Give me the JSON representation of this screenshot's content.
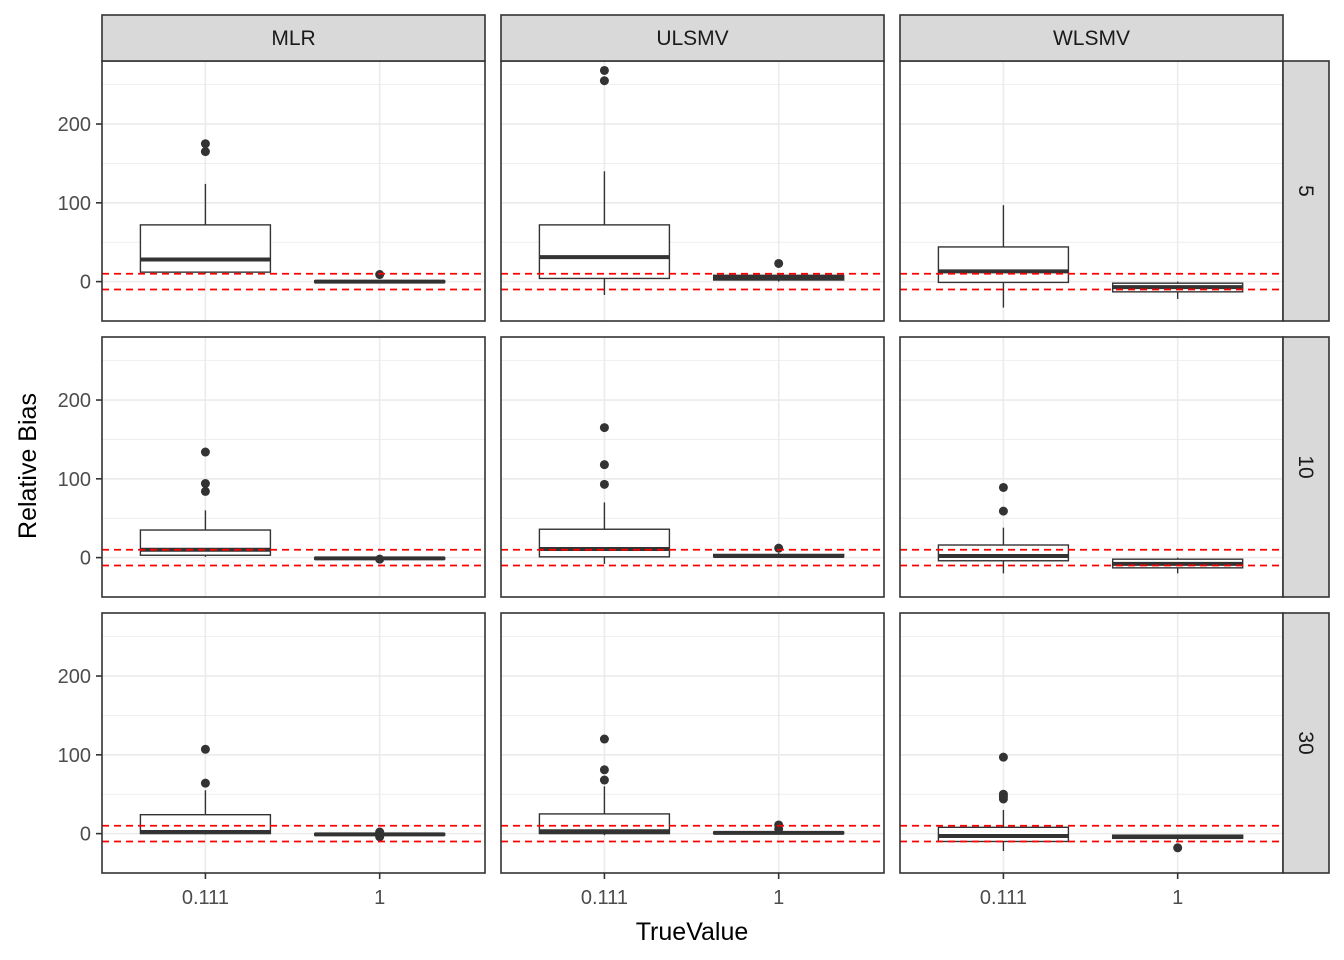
{
  "chart_data": {
    "type": "boxplot",
    "title": "",
    "xlabel": "TrueValue",
    "ylabel": "Relative Bias",
    "x_categories": [
      "0.111",
      "1"
    ],
    "y_ticks": [
      0,
      100,
      200
    ],
    "ylim": [
      -50,
      280
    ],
    "grid": true,
    "facet_cols": [
      "MLR",
      "ULSMV",
      "WLSMV"
    ],
    "facet_rows": [
      "5",
      "10",
      "30"
    ],
    "reference_lines": {
      "values": [
        -10,
        10
      ],
      "color": "#ff0000",
      "style": "dashed"
    },
    "colors": {
      "box_line": "#333333",
      "outlier": "#333333",
      "strip_fill": "#d9d9d9",
      "grid": "#ebebeb",
      "ref_line": "#ff0000"
    },
    "panels": [
      {
        "row": "5",
        "col": "MLR",
        "boxes": [
          {
            "x": "0.111",
            "min": 10,
            "q1": 12,
            "median": 28,
            "q3": 72,
            "max": 124,
            "outliers": [
              165,
              175
            ]
          },
          {
            "x": "1",
            "min": -2,
            "q1": -1,
            "median": 0,
            "q3": 1,
            "max": 2,
            "outliers": [
              9
            ]
          }
        ]
      },
      {
        "row": "5",
        "col": "ULSMV",
        "boxes": [
          {
            "x": "0.111",
            "min": -17,
            "q1": 4,
            "median": 31,
            "q3": 72,
            "max": 140,
            "outliers": [
              255,
              268
            ]
          },
          {
            "x": "1",
            "min": 0,
            "q1": 2,
            "median": 5,
            "q3": 8,
            "max": 11,
            "outliers": [
              23
            ]
          }
        ]
      },
      {
        "row": "5",
        "col": "WLSMV",
        "boxes": [
          {
            "x": "0.111",
            "min": -33,
            "q1": -1,
            "median": 13,
            "q3": 44,
            "max": 97,
            "outliers": []
          },
          {
            "x": "1",
            "min": -22,
            "q1": -13,
            "median": -7,
            "q3": -2,
            "max": 0,
            "outliers": []
          }
        ]
      },
      {
        "row": "10",
        "col": "MLR",
        "boxes": [
          {
            "x": "0.111",
            "min": 1,
            "q1": 3,
            "median": 10,
            "q3": 35,
            "max": 60,
            "outliers": [
              84,
              94,
              134
            ]
          },
          {
            "x": "1",
            "min": -3,
            "q1": -2,
            "median": -1,
            "q3": 0,
            "max": 1,
            "outliers": [
              -2
            ]
          }
        ]
      },
      {
        "row": "10",
        "col": "ULSMV",
        "boxes": [
          {
            "x": "0.111",
            "min": -8,
            "q1": 1,
            "median": 11,
            "q3": 36,
            "max": 70,
            "outliers": [
              93,
              118,
              165
            ]
          },
          {
            "x": "1",
            "min": 0,
            "q1": 1,
            "median": 2,
            "q3": 4,
            "max": 6,
            "outliers": [
              12
            ]
          }
        ]
      },
      {
        "row": "10",
        "col": "WLSMV",
        "boxes": [
          {
            "x": "0.111",
            "min": -20,
            "q1": -4,
            "median": 2,
            "q3": 16,
            "max": 38,
            "outliers": [
              59,
              89
            ]
          },
          {
            "x": "1",
            "min": -20,
            "q1": -13,
            "median": -8,
            "q3": -2,
            "max": 0,
            "outliers": []
          }
        ]
      },
      {
        "row": "30",
        "col": "MLR",
        "boxes": [
          {
            "x": "0.111",
            "min": -1,
            "q1": 0,
            "median": 2,
            "q3": 24,
            "max": 55,
            "outliers": [
              64,
              107
            ]
          },
          {
            "x": "1",
            "min": -4,
            "q1": -2,
            "median": -1,
            "q3": 0,
            "max": 1,
            "outliers": [
              -4,
              0,
              2
            ]
          }
        ]
      },
      {
        "row": "30",
        "col": "ULSMV",
        "boxes": [
          {
            "x": "0.111",
            "min": -2,
            "q1": 0,
            "median": 3,
            "q3": 25,
            "max": 60,
            "outliers": [
              68,
              81,
              120
            ]
          },
          {
            "x": "1",
            "min": -1,
            "q1": 0,
            "median": 1,
            "q3": 2,
            "max": 4,
            "outliers": [
              6,
              11
            ]
          }
        ]
      },
      {
        "row": "30",
        "col": "WLSMV",
        "boxes": [
          {
            "x": "0.111",
            "min": -22,
            "q1": -10,
            "median": -3,
            "q3": 8,
            "max": 30,
            "outliers": [
              44,
              47,
              50,
              97
            ]
          },
          {
            "x": "1",
            "min": -9,
            "q1": -6,
            "median": -4,
            "q3": -2,
            "max": -1,
            "outliers": [
              -18
            ]
          }
        ]
      }
    ]
  }
}
